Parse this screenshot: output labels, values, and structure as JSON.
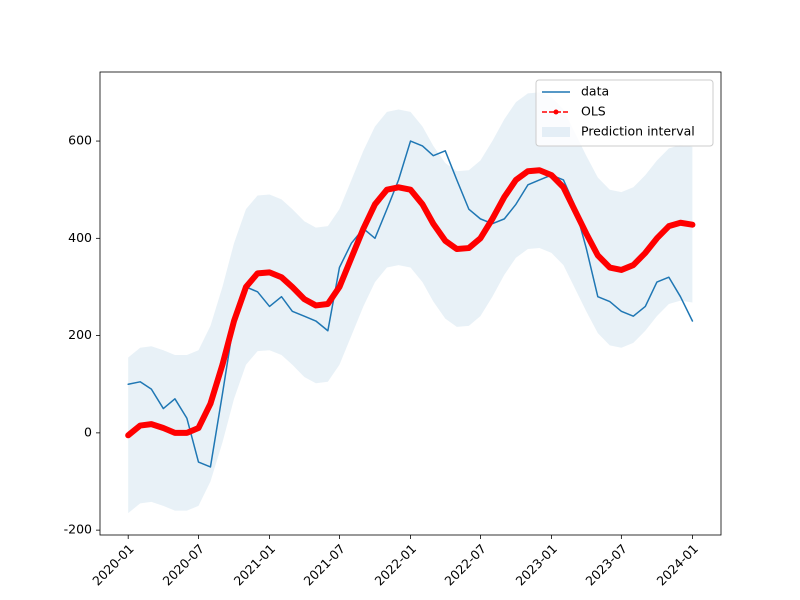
{
  "chart_data": {
    "type": "line",
    "x": [
      "2020-01",
      "2020-02",
      "2020-03",
      "2020-04",
      "2020-05",
      "2020-06",
      "2020-07",
      "2020-08",
      "2020-09",
      "2020-10",
      "2020-11",
      "2020-12",
      "2021-01",
      "2021-02",
      "2021-03",
      "2021-04",
      "2021-05",
      "2021-06",
      "2021-07",
      "2021-08",
      "2021-09",
      "2021-10",
      "2021-11",
      "2021-12",
      "2022-01",
      "2022-02",
      "2022-03",
      "2022-04",
      "2022-05",
      "2022-06",
      "2022-07",
      "2022-08",
      "2022-09",
      "2022-10",
      "2022-11",
      "2022-12",
      "2023-01",
      "2023-02",
      "2023-03",
      "2023-04",
      "2023-05",
      "2023-06",
      "2023-07",
      "2023-08",
      "2023-09",
      "2023-10",
      "2023-11",
      "2023-12",
      "2024-01"
    ],
    "series": [
      {
        "name": "data",
        "color": "#1f77b4",
        "style": "solid",
        "values": [
          100,
          105,
          90,
          50,
          70,
          30,
          -60,
          -70,
          80,
          230,
          300,
          290,
          260,
          280,
          250,
          240,
          230,
          210,
          340,
          390,
          420,
          400,
          460,
          520,
          600,
          590,
          570,
          580,
          520,
          460,
          440,
          430,
          440,
          470,
          510,
          520,
          530,
          520,
          470,
          380,
          280,
          270,
          250,
          240,
          260,
          310,
          320,
          280,
          230
        ]
      },
      {
        "name": "OLS",
        "color": "#ff0000",
        "style": "dashed-marker",
        "values": [
          -5,
          15,
          18,
          10,
          0,
          0,
          10,
          60,
          140,
          230,
          300,
          328,
          330,
          320,
          300,
          275,
          262,
          265,
          300,
          360,
          420,
          470,
          500,
          505,
          500,
          470,
          430,
          395,
          378,
          380,
          400,
          440,
          485,
          520,
          538,
          540,
          530,
          505,
          460,
          410,
          365,
          340,
          335,
          345,
          370,
          400,
          425,
          432,
          428
        ]
      }
    ],
    "interval": {
      "name": "Prediction interval",
      "color": "#1f77b4",
      "lower": [
        -165,
        -145,
        -142,
        -150,
        -160,
        -160,
        -150,
        -100,
        -20,
        70,
        140,
        168,
        170,
        160,
        140,
        115,
        102,
        105,
        140,
        200,
        260,
        310,
        340,
        345,
        340,
        310,
        270,
        235,
        218,
        220,
        240,
        280,
        325,
        360,
        378,
        380,
        370,
        345,
        300,
        250,
        205,
        180,
        175,
        185,
        210,
        240,
        265,
        272,
        268
      ],
      "upper": [
        155,
        175,
        178,
        170,
        160,
        160,
        170,
        220,
        300,
        390,
        460,
        488,
        490,
        480,
        460,
        435,
        422,
        425,
        460,
        520,
        580,
        630,
        660,
        665,
        660,
        630,
        590,
        555,
        538,
        540,
        560,
        600,
        645,
        680,
        698,
        700,
        690,
        665,
        620,
        570,
        525,
        500,
        495,
        505,
        530,
        560,
        585,
        592,
        588
      ]
    },
    "xlim": [
      "2019-10-20",
      "2024-03-15"
    ],
    "xticks": [
      "2020-01",
      "2020-07",
      "2021-01",
      "2021-07",
      "2022-01",
      "2022-07",
      "2023-01",
      "2023-07",
      "2024-01"
    ],
    "ylim": [
      -210,
      742
    ],
    "yticks": [
      -200,
      0,
      200,
      400,
      600
    ],
    "legend": "upper right"
  }
}
